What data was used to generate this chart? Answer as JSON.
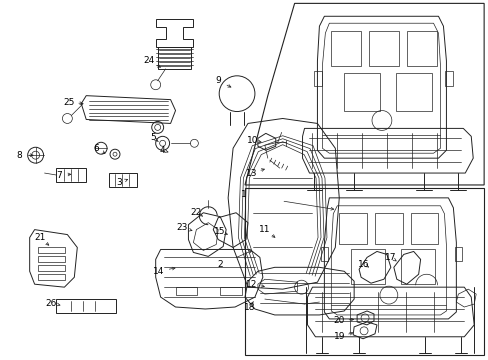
{
  "bg_color": "#ffffff",
  "line_color": "#222222",
  "label_color": "#000000",
  "fig_width": 4.89,
  "fig_height": 3.6,
  "dpi": 100
}
